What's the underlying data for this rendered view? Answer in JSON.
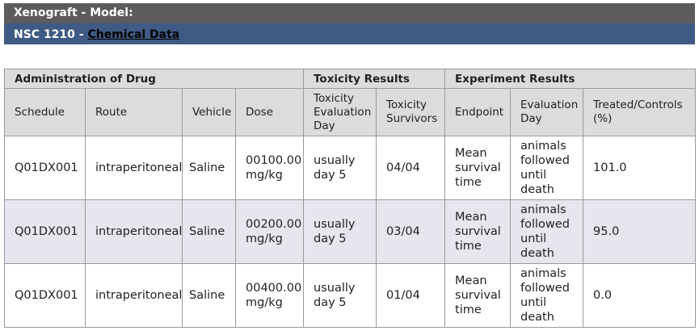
{
  "header": {
    "title": "Xenograft - Model:",
    "nsc_prefix": "NSC 1210 - ",
    "chemical_link": "Chemical Data"
  },
  "table": {
    "groups": {
      "administration": "Administration of Drug",
      "toxicity": "Toxicity Results",
      "experiment": "Experiment Results"
    },
    "columns": {
      "schedule": "Schedule",
      "route": "Route",
      "vehicle": "Vehicle",
      "dose": "Dose",
      "tox_eval_day": "Toxicity Evaluation Day",
      "tox_survivors": "Toxicity Survivors",
      "endpoint": "Endpoint",
      "eval_day": "Evaluation Day",
      "treated_controls": "Treated/Controls (%)"
    },
    "rows": [
      {
        "schedule": "Q01DX001",
        "route": "intraperitoneal",
        "vehicle": "Saline",
        "dose": "00100.00 mg/kg",
        "tox_eval_day": "usually day 5",
        "tox_survivors": "04/04",
        "endpoint": "Mean survival time",
        "eval_day": "animals followed until death",
        "treated_controls": "101.0"
      },
      {
        "schedule": "Q01DX001",
        "route": "intraperitoneal",
        "vehicle": "Saline",
        "dose": "00200.00 mg/kg",
        "tox_eval_day": "usually day 5",
        "tox_survivors": "03/04",
        "endpoint": "Mean survival time",
        "eval_day": "animals followed until death",
        "treated_controls": "95.0"
      },
      {
        "schedule": "Q01DX001",
        "route": "intraperitoneal",
        "vehicle": "Saline",
        "dose": "00400.00 mg/kg",
        "tox_eval_day": "usually day 5",
        "tox_survivors": "01/04",
        "endpoint": "Mean survival time",
        "eval_day": "animals followed until death",
        "treated_controls": "0.0"
      }
    ]
  }
}
